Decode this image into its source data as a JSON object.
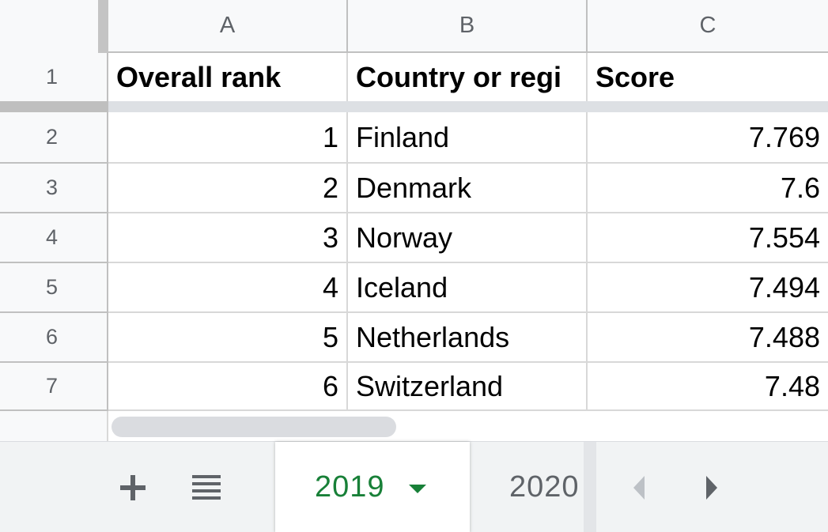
{
  "columns": [
    "A",
    "B",
    "C"
  ],
  "rows": [
    "1",
    "2",
    "3",
    "4",
    "5",
    "6",
    "7"
  ],
  "header": {
    "rank": "Overall rank",
    "country": "Country or regi",
    "score": "Score"
  },
  "data": [
    {
      "rank": "1",
      "country": "Finland",
      "score": "7.769"
    },
    {
      "rank": "2",
      "country": "Denmark",
      "score": "7.6"
    },
    {
      "rank": "3",
      "country": "Norway",
      "score": "7.554"
    },
    {
      "rank": "4",
      "country": "Iceland",
      "score": "7.494"
    },
    {
      "rank": "5",
      "country": "Netherlands",
      "score": "7.488"
    },
    {
      "rank": "6",
      "country": "Switzerland",
      "score": "7.48"
    }
  ],
  "tabs": [
    {
      "label": "2019",
      "active": true
    },
    {
      "label": "2020",
      "active": false
    }
  ],
  "icons": {
    "add": "plus-icon",
    "all_sheets": "list-icon",
    "scroll_left": "chevron-left-icon",
    "scroll_right": "chevron-right-icon"
  },
  "colors": {
    "active_tab_text": "#188038",
    "header_bg": "#f8f9fa",
    "grid_line": "#d8d8d8"
  }
}
